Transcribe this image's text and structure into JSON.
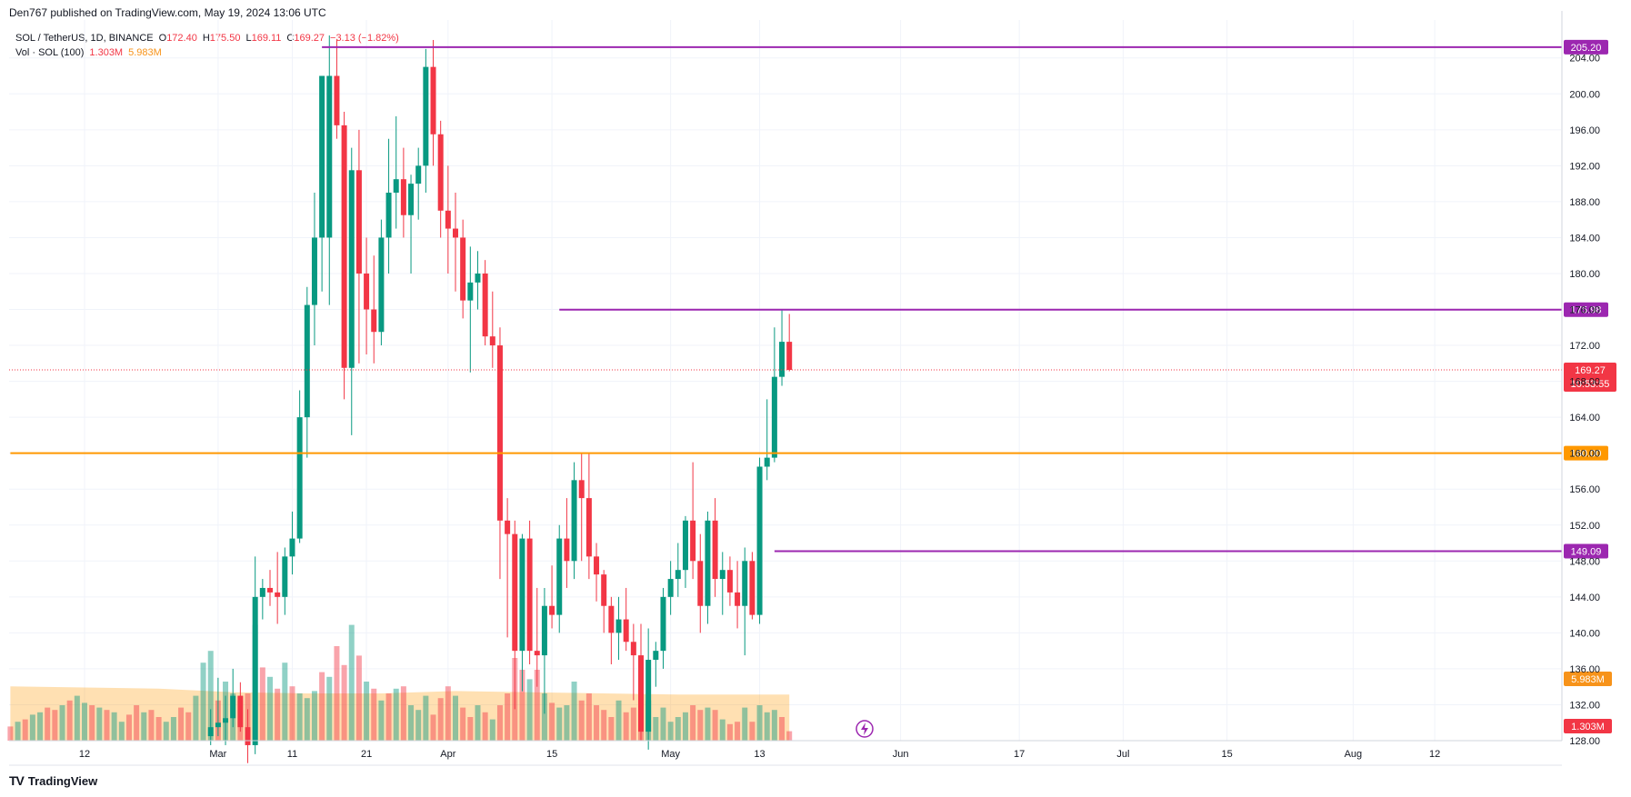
{
  "header": {
    "published": "Den767 published on TradingView.com, May 19, 2024 13:06 UTC"
  },
  "legend": {
    "symbol": "SOL / TetherUS, 1D, BINANCE",
    "o_label": "O",
    "o_val": "172.40",
    "h_label": "H",
    "h_val": "175.50",
    "l_label": "L",
    "l_val": "169.11",
    "c_label": "C",
    "c_val": "169.27",
    "change": "−3.13 (−1.82%)",
    "vol_label": "Vol · SOL (100)",
    "vol_val": "1.303M",
    "vol_ma": "5.983M"
  },
  "footer": {
    "brand": "TradingView",
    "logo": "TV"
  },
  "chart_data": {
    "type": "candlestick",
    "title": "SOL / TetherUS, 1D, BINANCE",
    "y_ticks": [
      "128.00",
      "132.00",
      "136.00",
      "140.00",
      "144.00",
      "148.00",
      "152.00",
      "156.00",
      "160.00",
      "164.00",
      "168.00",
      "172.00",
      "176.00",
      "180.00",
      "184.00",
      "188.00",
      "192.00",
      "196.00",
      "200.00",
      "204.00"
    ],
    "ylim": [
      128,
      207
    ],
    "x_ticks": [
      {
        "label": "12",
        "day": 0
      },
      {
        "label": "Mar",
        "day": 18
      },
      {
        "label": "11",
        "day": 28
      },
      {
        "label": "21",
        "day": 38
      },
      {
        "label": "Apr",
        "day": 49
      },
      {
        "label": "15",
        "day": 63
      },
      {
        "label": "May",
        "day": 79
      },
      {
        "label": "13",
        "day": 91
      },
      {
        "label": "Jun",
        "day": 110
      },
      {
        "label": "17",
        "day": 126
      },
      {
        "label": "Jul",
        "day": 140
      },
      {
        "label": "15",
        "day": 154
      },
      {
        "label": "Aug",
        "day": 171
      },
      {
        "label": "12",
        "day": 182
      }
    ],
    "levels": [
      {
        "value": 205.2,
        "label": "205.20",
        "color": "#9c27b0",
        "start_day": 32
      },
      {
        "value": 175.98,
        "label": "175.98",
        "color": "#9c27b0",
        "start_day": 64
      },
      {
        "value": 149.09,
        "label": "149.09",
        "color": "#9c27b0",
        "start_day": 93
      },
      {
        "value": 160.0,
        "label": "160.00",
        "color": "#ff9800",
        "start_day": -10
      }
    ],
    "last_price": {
      "value": 169.27,
      "label": "169.27",
      "countdown": "10:53:55",
      "color": "#f23645"
    },
    "volume_labels": [
      {
        "label": "5.983M",
        "color": "#f7931a"
      },
      {
        "label": "1.303M",
        "color": "#f23645"
      }
    ],
    "candles": [
      {
        "d": 17,
        "o": 128.5,
        "h": 131.5,
        "l": 127.5,
        "c": 129.5
      },
      {
        "d": 18,
        "o": 129.5,
        "h": 135.0,
        "l": 128.5,
        "c": 130.0
      },
      {
        "d": 19,
        "o": 130.0,
        "h": 133.0,
        "l": 127.5,
        "c": 130.5
      },
      {
        "d": 20,
        "o": 130.5,
        "h": 136.0,
        "l": 129.5,
        "c": 133.0
      },
      {
        "d": 21,
        "o": 133.0,
        "h": 134.5,
        "l": 129.0,
        "c": 129.5
      },
      {
        "d": 22,
        "o": 129.5,
        "h": 131.5,
        "l": 125.5,
        "c": 127.5
      },
      {
        "d": 23,
        "o": 127.5,
        "h": 148.5,
        "l": 126.5,
        "c": 144.0
      },
      {
        "d": 24,
        "o": 144.0,
        "h": 146.0,
        "l": 141.5,
        "c": 145.0
      },
      {
        "d": 25,
        "o": 145.0,
        "h": 147.0,
        "l": 143.0,
        "c": 144.5
      },
      {
        "d": 26,
        "o": 144.5,
        "h": 149.0,
        "l": 141.0,
        "c": 144.0
      },
      {
        "d": 27,
        "o": 144.0,
        "h": 149.5,
        "l": 142.0,
        "c": 148.5
      },
      {
        "d": 28,
        "o": 148.5,
        "h": 153.5,
        "l": 146.5,
        "c": 150.5
      },
      {
        "d": 29,
        "o": 150.5,
        "h": 167.0,
        "l": 150.0,
        "c": 164.0
      },
      {
        "d": 30,
        "o": 164.0,
        "h": 178.5,
        "l": 159.5,
        "c": 176.5
      },
      {
        "d": 31,
        "o": 176.5,
        "h": 189.0,
        "l": 172.0,
        "c": 184.0
      },
      {
        "d": 32,
        "o": 184.0,
        "h": 202.0,
        "l": 178.0,
        "c": 202.0
      },
      {
        "d": 33,
        "o": 184.0,
        "h": 206.5,
        "l": 176.5,
        "c": 202.0
      },
      {
        "d": 34,
        "o": 202.0,
        "h": 206.0,
        "l": 195.0,
        "c": 196.5
      },
      {
        "d": 35,
        "o": 196.5,
        "h": 198.0,
        "l": 166.0,
        "c": 169.5
      },
      {
        "d": 36,
        "o": 169.5,
        "h": 194.0,
        "l": 162.0,
        "c": 191.5
      },
      {
        "d": 37,
        "o": 191.5,
        "h": 196.0,
        "l": 170.0,
        "c": 180.0
      },
      {
        "d": 38,
        "o": 180.0,
        "h": 184.0,
        "l": 171.0,
        "c": 176.0
      },
      {
        "d": 39,
        "o": 176.0,
        "h": 182.0,
        "l": 170.0,
        "c": 173.5
      },
      {
        "d": 40,
        "o": 173.5,
        "h": 186.0,
        "l": 172.0,
        "c": 184.0
      },
      {
        "d": 41,
        "o": 184.0,
        "h": 195.0,
        "l": 180.0,
        "c": 189.0
      },
      {
        "d": 42,
        "o": 189.0,
        "h": 197.5,
        "l": 185.0,
        "c": 190.5
      },
      {
        "d": 43,
        "o": 190.5,
        "h": 194.0,
        "l": 184.0,
        "c": 186.5
      },
      {
        "d": 44,
        "o": 186.5,
        "h": 191.0,
        "l": 180.0,
        "c": 190.0
      },
      {
        "d": 45,
        "o": 190.0,
        "h": 194.0,
        "l": 186.0,
        "c": 192.0
      },
      {
        "d": 46,
        "o": 192.0,
        "h": 205.0,
        "l": 189.0,
        "c": 203.0
      },
      {
        "d": 47,
        "o": 203.0,
        "h": 206.0,
        "l": 192.0,
        "c": 195.5
      },
      {
        "d": 48,
        "o": 195.5,
        "h": 197.0,
        "l": 184.0,
        "c": 187.0
      },
      {
        "d": 49,
        "o": 187.0,
        "h": 192.0,
        "l": 180.0,
        "c": 185.0
      },
      {
        "d": 50,
        "o": 185.0,
        "h": 189.0,
        "l": 178.0,
        "c": 184.0
      },
      {
        "d": 51,
        "o": 184.0,
        "h": 186.0,
        "l": 175.0,
        "c": 177.0
      },
      {
        "d": 52,
        "o": 177.0,
        "h": 183.0,
        "l": 169.0,
        "c": 179.0
      },
      {
        "d": 53,
        "o": 179.0,
        "h": 182.5,
        "l": 176.0,
        "c": 180.0
      },
      {
        "d": 54,
        "o": 180.0,
        "h": 181.5,
        "l": 172.0,
        "c": 173.0
      },
      {
        "d": 55,
        "o": 173.0,
        "h": 178.0,
        "l": 169.5,
        "c": 172.0
      },
      {
        "d": 56,
        "o": 172.0,
        "h": 174.0,
        "l": 146.0,
        "c": 152.5
      },
      {
        "d": 57,
        "o": 152.5,
        "h": 155.0,
        "l": 139.5,
        "c": 151.0
      },
      {
        "d": 58,
        "o": 151.0,
        "h": 152.5,
        "l": 131.5,
        "c": 138.0
      },
      {
        "d": 59,
        "o": 138.0,
        "h": 151.0,
        "l": 133.5,
        "c": 150.5
      },
      {
        "d": 60,
        "o": 150.5,
        "h": 152.5,
        "l": 136.5,
        "c": 138.0
      },
      {
        "d": 61,
        "o": 138.0,
        "h": 145.0,
        "l": 134.0,
        "c": 137.5
      },
      {
        "d": 62,
        "o": 137.5,
        "h": 145.0,
        "l": 131.0,
        "c": 143.0
      },
      {
        "d": 63,
        "o": 143.0,
        "h": 147.5,
        "l": 140.5,
        "c": 142.0
      },
      {
        "d": 64,
        "o": 142.0,
        "h": 152.0,
        "l": 140.0,
        "c": 150.5
      },
      {
        "d": 65,
        "o": 150.5,
        "h": 155.0,
        "l": 145.0,
        "c": 148.0
      },
      {
        "d": 66,
        "o": 148.0,
        "h": 159.0,
        "l": 146.0,
        "c": 157.0
      },
      {
        "d": 67,
        "o": 157.0,
        "h": 160.0,
        "l": 148.0,
        "c": 155.0
      },
      {
        "d": 68,
        "o": 155.0,
        "h": 160.0,
        "l": 146.0,
        "c": 148.5
      },
      {
        "d": 69,
        "o": 148.5,
        "h": 150.0,
        "l": 143.5,
        "c": 146.5
      },
      {
        "d": 70,
        "o": 146.5,
        "h": 147.0,
        "l": 140.0,
        "c": 143.0
      },
      {
        "d": 71,
        "o": 143.0,
        "h": 144.0,
        "l": 136.5,
        "c": 140.0
      },
      {
        "d": 72,
        "o": 140.0,
        "h": 144.0,
        "l": 137.0,
        "c": 141.5
      },
      {
        "d": 73,
        "o": 141.5,
        "h": 145.0,
        "l": 138.0,
        "c": 139.0
      },
      {
        "d": 74,
        "o": 139.0,
        "h": 141.0,
        "l": 132.5,
        "c": 137.5
      },
      {
        "d": 75,
        "o": 137.5,
        "h": 141.0,
        "l": 128.0,
        "c": 129.0
      },
      {
        "d": 76,
        "o": 129.0,
        "h": 140.5,
        "l": 127.0,
        "c": 137.0
      },
      {
        "d": 77,
        "o": 137.0,
        "h": 139.0,
        "l": 134.0,
        "c": 138.0
      },
      {
        "d": 78,
        "o": 138.0,
        "h": 145.0,
        "l": 136.0,
        "c": 144.0
      },
      {
        "d": 79,
        "o": 144.0,
        "h": 148.0,
        "l": 142.0,
        "c": 146.0
      },
      {
        "d": 80,
        "o": 146.0,
        "h": 150.0,
        "l": 144.0,
        "c": 147.0
      },
      {
        "d": 81,
        "o": 147.0,
        "h": 153.0,
        "l": 145.0,
        "c": 152.5
      },
      {
        "d": 82,
        "o": 152.5,
        "h": 159.0,
        "l": 146.0,
        "c": 148.0
      },
      {
        "d": 83,
        "o": 148.0,
        "h": 151.0,
        "l": 140.0,
        "c": 143.0
      },
      {
        "d": 84,
        "o": 143.0,
        "h": 153.5,
        "l": 141.0,
        "c": 152.5
      },
      {
        "d": 85,
        "o": 152.5,
        "h": 155.0,
        "l": 144.0,
        "c": 146.0
      },
      {
        "d": 86,
        "o": 146.0,
        "h": 149.0,
        "l": 142.0,
        "c": 147.0
      },
      {
        "d": 87,
        "o": 147.0,
        "h": 148.5,
        "l": 143.0,
        "c": 144.5
      },
      {
        "d": 88,
        "o": 144.5,
        "h": 148.0,
        "l": 140.5,
        "c": 143.0
      },
      {
        "d": 89,
        "o": 143.0,
        "h": 149.5,
        "l": 137.5,
        "c": 148.0
      },
      {
        "d": 90,
        "o": 148.0,
        "h": 149.0,
        "l": 141.5,
        "c": 142.0
      },
      {
        "d": 91,
        "o": 142.0,
        "h": 159.5,
        "l": 141.0,
        "c": 158.5
      },
      {
        "d": 92,
        "o": 158.5,
        "h": 166.0,
        "l": 157.0,
        "c": 159.5
      },
      {
        "d": 93,
        "o": 159.5,
        "h": 174.0,
        "l": 159.0,
        "c": 168.5
      },
      {
        "d": 94,
        "o": 168.5,
        "h": 176.0,
        "l": 167.5,
        "c": 172.4
      },
      {
        "d": 95,
        "o": 172.4,
        "h": 175.5,
        "l": 169.11,
        "c": 169.27
      }
    ],
    "volume_bars": [
      {
        "d": -10,
        "v": 0.6,
        "up": false
      },
      {
        "d": -9,
        "v": 0.8,
        "up": true
      },
      {
        "d": -8,
        "v": 0.9,
        "up": false
      },
      {
        "d": -7,
        "v": 1.1,
        "up": true
      },
      {
        "d": -6,
        "v": 1.2,
        "up": true
      },
      {
        "d": -5,
        "v": 1.4,
        "up": false
      },
      {
        "d": -4,
        "v": 1.3,
        "up": false
      },
      {
        "d": -3,
        "v": 1.5,
        "up": true
      },
      {
        "d": -2,
        "v": 1.7,
        "up": false
      },
      {
        "d": -1,
        "v": 1.9,
        "up": true
      },
      {
        "d": 0,
        "v": 1.6,
        "up": true
      },
      {
        "d": 1,
        "v": 1.5,
        "up": false
      },
      {
        "d": 2,
        "v": 1.4,
        "up": true
      },
      {
        "d": 3,
        "v": 1.3,
        "up": false
      },
      {
        "d": 4,
        "v": 1.2,
        "up": true
      },
      {
        "d": 5,
        "v": 0.8,
        "up": true
      },
      {
        "d": 6,
        "v": 1.1,
        "up": false
      },
      {
        "d": 7,
        "v": 1.5,
        "up": false
      },
      {
        "d": 8,
        "v": 1.2,
        "up": true
      },
      {
        "d": 9,
        "v": 1.3,
        "up": false
      },
      {
        "d": 10,
        "v": 1.0,
        "up": false
      },
      {
        "d": 11,
        "v": 0.8,
        "up": true
      },
      {
        "d": 12,
        "v": 1.0,
        "up": true
      },
      {
        "d": 13,
        "v": 1.4,
        "up": false
      },
      {
        "d": 14,
        "v": 1.2,
        "up": false
      },
      {
        "d": 15,
        "v": 1.9,
        "up": true
      },
      {
        "d": 16,
        "v": 3.3,
        "up": true
      },
      {
        "d": 17,
        "v": 3.8,
        "up": true
      },
      {
        "d": 18,
        "v": 1.7,
        "up": false
      },
      {
        "d": 19,
        "v": 2.5,
        "up": true
      },
      {
        "d": 20,
        "v": 2.0,
        "up": true
      },
      {
        "d": 21,
        "v": 1.7,
        "up": false
      },
      {
        "d": 22,
        "v": 2.0,
        "up": false
      },
      {
        "d": 23,
        "v": 4.9,
        "up": true
      },
      {
        "d": 24,
        "v": 3.1,
        "up": false
      },
      {
        "d": 25,
        "v": 2.7,
        "up": true
      },
      {
        "d": 26,
        "v": 2.2,
        "up": false
      },
      {
        "d": 27,
        "v": 3.3,
        "up": true
      },
      {
        "d": 28,
        "v": 2.3,
        "up": false
      },
      {
        "d": 29,
        "v": 2.0,
        "up": true
      },
      {
        "d": 30,
        "v": 1.8,
        "up": true
      },
      {
        "d": 31,
        "v": 2.1,
        "up": true
      },
      {
        "d": 32,
        "v": 2.9,
        "up": false
      },
      {
        "d": 33,
        "v": 2.7,
        "up": true
      },
      {
        "d": 34,
        "v": 4.0,
        "up": false
      },
      {
        "d": 35,
        "v": 3.2,
        "up": false
      },
      {
        "d": 36,
        "v": 4.9,
        "up": true
      },
      {
        "d": 37,
        "v": 3.6,
        "up": false
      },
      {
        "d": 38,
        "v": 2.5,
        "up": true
      },
      {
        "d": 39,
        "v": 2.2,
        "up": false
      },
      {
        "d": 40,
        "v": 1.7,
        "up": true
      },
      {
        "d": 41,
        "v": 2.0,
        "up": false
      },
      {
        "d": 42,
        "v": 2.2,
        "up": true
      },
      {
        "d": 43,
        "v": 2.3,
        "up": false
      },
      {
        "d": 44,
        "v": 1.5,
        "up": true
      },
      {
        "d": 45,
        "v": 1.3,
        "up": true
      },
      {
        "d": 46,
        "v": 1.9,
        "up": true
      },
      {
        "d": 47,
        "v": 1.1,
        "up": false
      },
      {
        "d": 48,
        "v": 1.8,
        "up": false
      },
      {
        "d": 49,
        "v": 2.3,
        "up": false
      },
      {
        "d": 50,
        "v": 1.9,
        "up": true
      },
      {
        "d": 51,
        "v": 1.4,
        "up": false
      },
      {
        "d": 52,
        "v": 1.0,
        "up": false
      },
      {
        "d": 53,
        "v": 1.5,
        "up": true
      },
      {
        "d": 54,
        "v": 1.2,
        "up": false
      },
      {
        "d": 55,
        "v": 0.9,
        "up": true
      },
      {
        "d": 56,
        "v": 1.5,
        "up": false
      },
      {
        "d": 57,
        "v": 2.0,
        "up": false
      },
      {
        "d": 58,
        "v": 3.5,
        "up": false
      },
      {
        "d": 59,
        "v": 3.0,
        "up": false
      },
      {
        "d": 60,
        "v": 2.6,
        "up": true
      },
      {
        "d": 61,
        "v": 3.0,
        "up": false
      },
      {
        "d": 62,
        "v": 2.0,
        "up": true
      },
      {
        "d": 63,
        "v": 1.6,
        "up": false
      },
      {
        "d": 64,
        "v": 1.4,
        "up": true
      },
      {
        "d": 65,
        "v": 1.5,
        "up": true
      },
      {
        "d": 66,
        "v": 2.5,
        "up": true
      },
      {
        "d": 67,
        "v": 1.7,
        "up": false
      },
      {
        "d": 68,
        "v": 2.0,
        "up": false
      },
      {
        "d": 69,
        "v": 1.5,
        "up": false
      },
      {
        "d": 70,
        "v": 1.3,
        "up": false
      },
      {
        "d": 71,
        "v": 1.0,
        "up": false
      },
      {
        "d": 72,
        "v": 1.7,
        "up": true
      },
      {
        "d": 73,
        "v": 1.2,
        "up": false
      },
      {
        "d": 74,
        "v": 1.4,
        "up": false
      },
      {
        "d": 75,
        "v": 1.8,
        "up": false
      },
      {
        "d": 76,
        "v": 1.7,
        "up": true
      },
      {
        "d": 77,
        "v": 1.0,
        "up": true
      },
      {
        "d": 78,
        "v": 1.4,
        "up": true
      },
      {
        "d": 79,
        "v": 0.8,
        "up": true
      },
      {
        "d": 80,
        "v": 1.0,
        "up": true
      },
      {
        "d": 81,
        "v": 1.2,
        "up": true
      },
      {
        "d": 82,
        "v": 1.5,
        "up": false
      },
      {
        "d": 83,
        "v": 1.3,
        "up": false
      },
      {
        "d": 84,
        "v": 1.4,
        "up": true
      },
      {
        "d": 85,
        "v": 1.3,
        "up": false
      },
      {
        "d": 86,
        "v": 0.9,
        "up": true
      },
      {
        "d": 87,
        "v": 0.7,
        "up": false
      },
      {
        "d": 88,
        "v": 0.8,
        "up": false
      },
      {
        "d": 89,
        "v": 1.4,
        "up": true
      },
      {
        "d": 90,
        "v": 0.8,
        "up": false
      },
      {
        "d": 91,
        "v": 1.5,
        "up": true
      },
      {
        "d": 92,
        "v": 1.2,
        "up": true
      },
      {
        "d": 93,
        "v": 1.3,
        "up": true
      },
      {
        "d": 94,
        "v": 1.0,
        "up": false
      },
      {
        "d": 95,
        "v": 0.4,
        "up": false
      }
    ],
    "volume_ma": [
      {
        "d": -10,
        "v": 2.3
      },
      {
        "d": 0,
        "v": 2.25
      },
      {
        "d": 10,
        "v": 2.2
      },
      {
        "d": 20,
        "v": 2.05
      },
      {
        "d": 30,
        "v": 2.0
      },
      {
        "d": 40,
        "v": 2.0
      },
      {
        "d": 50,
        "v": 2.1
      },
      {
        "d": 60,
        "v": 2.05
      },
      {
        "d": 70,
        "v": 2.0
      },
      {
        "d": 80,
        "v": 1.95
      },
      {
        "d": 95,
        "v": 1.95
      }
    ]
  }
}
